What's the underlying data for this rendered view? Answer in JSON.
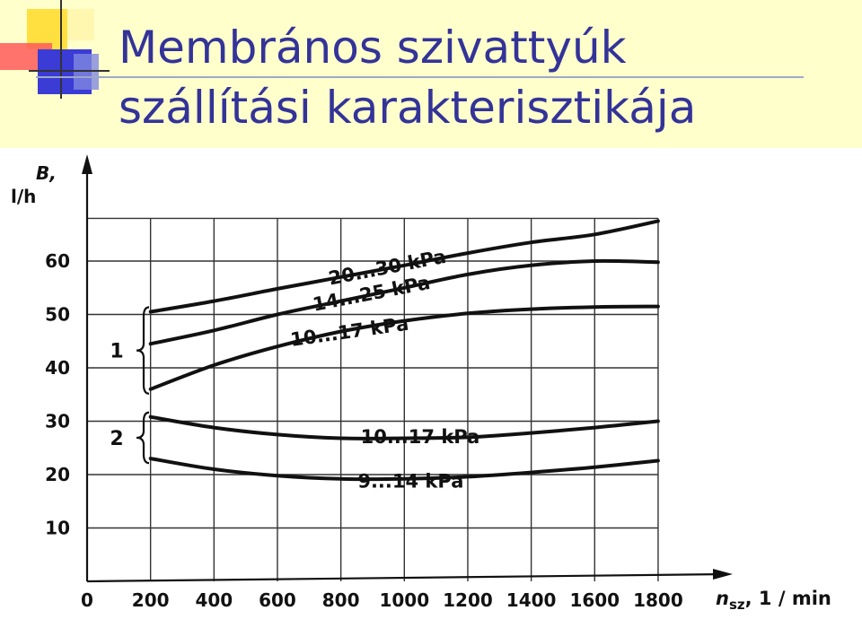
{
  "slide": {
    "title_line1": "Membrános szivattyúk",
    "title_line2": "szállítási karakterisztikája"
  },
  "chart_data": {
    "type": "line",
    "title": "",
    "xlabel": "n_sz, 1/min",
    "xlabel_main": "n",
    "xlabel_sub": "sz",
    "xlabel_unit": ", 1 / min",
    "ylabel": "B, l/h",
    "ylabel_line1": "B,",
    "ylabel_line2": "l/h",
    "xlim": [
      0,
      1800
    ],
    "ylim": [
      0,
      68
    ],
    "x_ticks": [
      0,
      200,
      400,
      600,
      800,
      1000,
      1200,
      1400,
      1600,
      1800
    ],
    "y_ticks": [
      10,
      20,
      30,
      40,
      50,
      60
    ],
    "grid": true,
    "series": [
      {
        "name": "20...30 kPa",
        "group": "1",
        "x": [
          200,
          400,
          600,
          800,
          1000,
          1200,
          1400,
          1600,
          1800
        ],
        "y": [
          50.5,
          52.5,
          54.8,
          57.0,
          59.2,
          61.5,
          63.5,
          65.0,
          67.5
        ]
      },
      {
        "name": "14...25 kPa",
        "group": "1",
        "x": [
          200,
          400,
          600,
          800,
          1000,
          1200,
          1400,
          1600,
          1800
        ],
        "y": [
          44.5,
          47.0,
          50.0,
          52.5,
          55.0,
          57.5,
          59.2,
          60.0,
          59.8
        ]
      },
      {
        "name": "10...17 kPa",
        "group": "1",
        "x": [
          200,
          400,
          600,
          800,
          1000,
          1200,
          1400,
          1600,
          1800
        ],
        "y": [
          36.0,
          40.5,
          44.0,
          46.8,
          48.8,
          50.2,
          51.0,
          51.4,
          51.5
        ]
      },
      {
        "name": "10...17 kPa",
        "group": "2",
        "x": [
          200,
          400,
          600,
          800,
          1000,
          1200,
          1400,
          1600,
          1800
        ],
        "y": [
          30.8,
          28.8,
          27.5,
          26.8,
          26.8,
          27.0,
          27.8,
          28.8,
          30.0
        ]
      },
      {
        "name": "9...14 kPa",
        "group": "2",
        "x": [
          200,
          400,
          600,
          800,
          1000,
          1200,
          1400,
          1600,
          1800
        ],
        "y": [
          23.0,
          21.0,
          19.8,
          19.2,
          19.2,
          19.6,
          20.4,
          21.4,
          22.6
        ]
      }
    ],
    "annotations": [
      {
        "text": "20...30 kPa",
        "series": 0
      },
      {
        "text": "14...25 kPa",
        "series": 1
      },
      {
        "text": "10...17 kPa",
        "series": 2
      },
      {
        "text": "10...17 kPa",
        "series": 3
      },
      {
        "text": "9...14 kPa",
        "series": 4
      }
    ],
    "groups": [
      {
        "label": "1",
        "series": [
          0,
          1,
          2
        ]
      },
      {
        "label": "2",
        "series": [
          3,
          4
        ]
      }
    ]
  }
}
